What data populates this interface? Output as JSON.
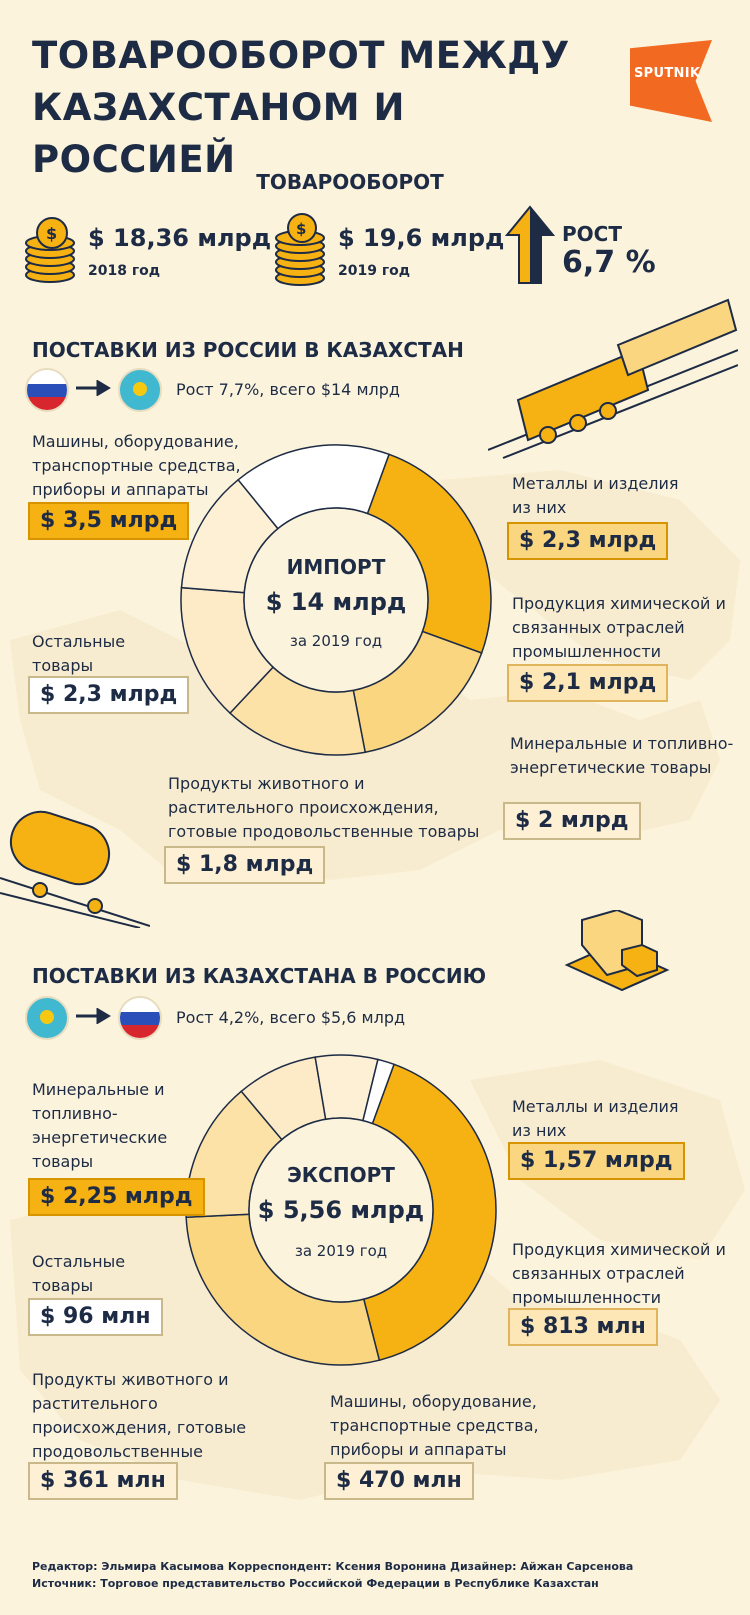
{
  "title": "ТОВАРООБОРОТ МЕЖДУ КАЗАХСТАНОМ И РОССИЕЙ",
  "logo": "SPUTNIK",
  "turnover": {
    "title": "ТОВАРООБОРОТ",
    "y2018_value": "$ 18,36 млрд",
    "y2018_label": "2018 год",
    "y2019_value": "$ 19,6 млрд",
    "y2019_label": "2019 год",
    "growth_label": "РОСТ",
    "growth_value": "6,7 %"
  },
  "import": {
    "title": "ПОСТАВКИ ИЗ РОССИИ В КАЗАХСТАН",
    "subtitle": "Рост 7,7%, всего $14 млрд",
    "center_title": "ИМПОРТ",
    "center_value": "$ 14 млрд",
    "center_year": "за 2019 год",
    "items": [
      {
        "label": "Машины, оборудование, транспортные средства, приборы и аппараты",
        "value": "$ 3,5 млрд"
      },
      {
        "label": "Металлы и изделия из них",
        "value": "$ 2,3 млрд"
      },
      {
        "label": "Продукция химической и связанных отраслей промышленности",
        "value": "$ 2,1 млрд"
      },
      {
        "label": "Минеральные и топливно-энергетические товары",
        "value": "$ 2 млрд"
      },
      {
        "label": "Продукты животного и растительного происхождения, готовые продовольственные товары",
        "value": "$ 1,8 млрд"
      },
      {
        "label": "Остальные товары",
        "value": "$ 2,3 млрд"
      }
    ]
  },
  "export": {
    "title": "ПОСТАВКИ ИЗ КАЗАХСТАНА В РОССИЮ",
    "subtitle": "Рост 4,2%, всего $5,6 млрд",
    "center_title": "ЭКСПОРТ",
    "center_value": "$ 5,56 млрд",
    "center_year": "за 2019 год",
    "items": [
      {
        "label": "Минеральные и топливно-энергетические товары",
        "value": "$ 2,25 млрд"
      },
      {
        "label": "Металлы и изделия из них",
        "value": "$ 1,57 млрд"
      },
      {
        "label": "Продукция химической и связанных отраслей промышленности",
        "value": "$ 813 млн"
      },
      {
        "label": "Машины, оборудование, транспортные средства, приборы и аппараты",
        "value": "$ 470 млн"
      },
      {
        "label": "Продукты животного и растительного происхождения, готовые продовольственные товары",
        "value": "$ 361 млн"
      },
      {
        "label": "Остальные товары",
        "value": "$ 96 млн"
      }
    ]
  },
  "credits": {
    "line1": "Редактор: Эльмира Касымова   Корреспондент: Ксения Воронина   Дизайнер: Айжан Сарсенова",
    "line2": "Источник: Торговое представительство Российской Федерации в Республике Казахстан"
  },
  "colors": {
    "dark_orange": "#f6b112",
    "medium": "#fad680",
    "light": "#fde7b6",
    "pale": "#fdf0d4",
    "white": "#ffffff",
    "navy": "#1d2b45"
  },
  "chart_data": [
    {
      "type": "pie",
      "title": "ИМПОРТ",
      "unit": "млрд $",
      "categories": [
        "Машины, оборудование, транспортные средства, приборы и аппараты",
        "Металлы и изделия из них",
        "Продукция химической и связанных отраслей промышленности",
        "Минеральные и топливно-энергетические товары",
        "Продукты животного и растительного происхождения, готовые продовольственные товары",
        "Остальные товары"
      ],
      "values": [
        3.5,
        2.3,
        2.1,
        2.0,
        1.8,
        2.3
      ],
      "colors": [
        "#f6b112",
        "#fad680",
        "#fde2a8",
        "#fdebc8",
        "#fdf0d4",
        "#ffffff"
      ]
    },
    {
      "type": "pie",
      "title": "ЭКСПОРТ",
      "unit": "млн $",
      "categories": [
        "Минеральные и топливно-энергетические товары",
        "Металлы и изделия из них",
        "Продукция химической и связанных отраслей промышленности",
        "Машины, оборудование, транспортные средства, приборы и аппараты",
        "Продукты животного и растительного происхождения, готовые продовольственные товары",
        "Остальные товары"
      ],
      "values": [
        2250,
        1570,
        813,
        470,
        361,
        96
      ],
      "colors": [
        "#f6b112",
        "#fad680",
        "#fde2a8",
        "#fdebc8",
        "#fdf0d4",
        "#ffffff"
      ]
    }
  ]
}
